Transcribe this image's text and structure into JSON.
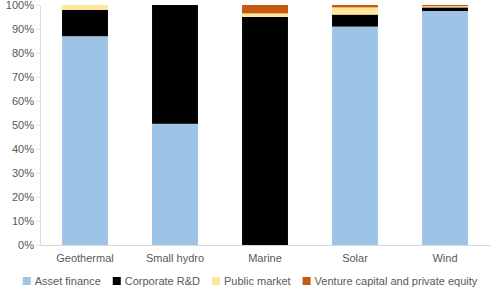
{
  "chart_data": {
    "type": "bar",
    "stacked": true,
    "grid": false,
    "legend": "bottom",
    "categories": [
      "Geothermal",
      "Small hydro",
      "Marine",
      "Solar",
      "Wind"
    ],
    "series": [
      {
        "name": "Asset finance",
        "color": "#9dc3e6",
        "values": [
          87,
          50.5,
          0,
          91,
          97.5
        ]
      },
      {
        "name": "Corporate R&D",
        "color": "#000000",
        "values": [
          11,
          49.5,
          95,
          5,
          1.5
        ]
      },
      {
        "name": "Public market",
        "color": "#ffe699",
        "values": [
          2,
          0,
          1.5,
          3,
          0.5
        ]
      },
      {
        "name": "Venture capital and private equity",
        "color": "#c55a11",
        "values": [
          0,
          0,
          3.5,
          1,
          0.5
        ]
      }
    ],
    "ylim": [
      0,
      100
    ],
    "yticks": [
      {
        "value": 0,
        "label": "0%"
      },
      {
        "value": 10,
        "label": "10%"
      },
      {
        "value": 20,
        "label": "20%"
      },
      {
        "value": 30,
        "label": "30%"
      },
      {
        "value": 40,
        "label": "40%"
      },
      {
        "value": 50,
        "label": "50%"
      },
      {
        "value": 60,
        "label": "60%"
      },
      {
        "value": 70,
        "label": "70%"
      },
      {
        "value": 80,
        "label": "80%"
      },
      {
        "value": 90,
        "label": "90%"
      },
      {
        "value": 100,
        "label": "100%"
      }
    ]
  }
}
